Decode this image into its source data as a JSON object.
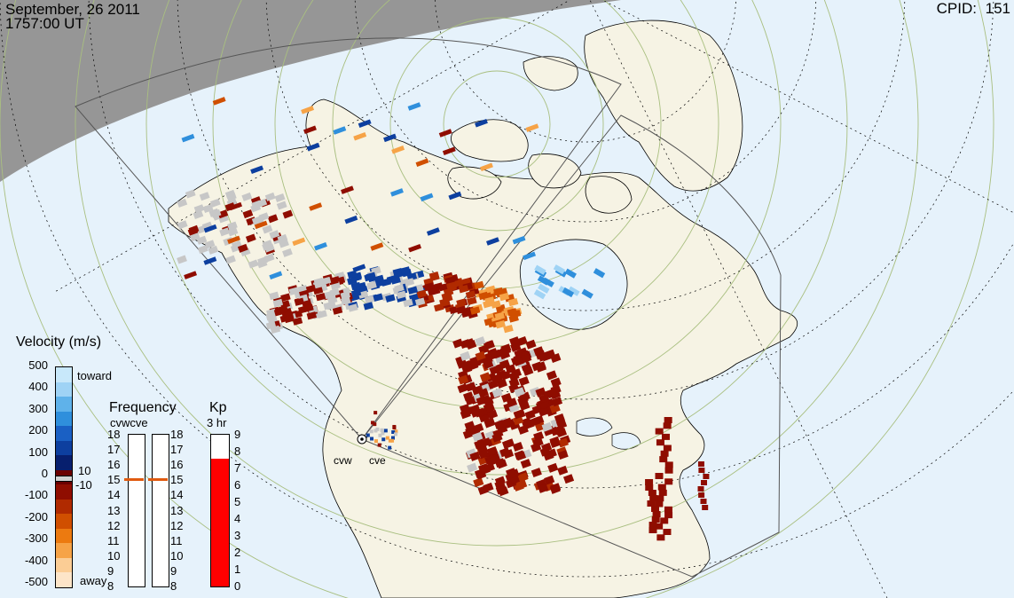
{
  "header": {
    "date": "September, 26 2011",
    "time": "1757:00 UT",
    "cpid_label": "CPID:",
    "cpid_value": "151"
  },
  "stations": [
    {
      "code": "cvw"
    },
    {
      "code": "cve"
    }
  ],
  "velocity_scale": {
    "title": "Velocity (m/s)",
    "ticks": [
      "500",
      "400",
      "300",
      "200",
      "100",
      "0",
      "-100",
      "-200",
      "-300",
      "-400",
      "-500"
    ],
    "toward_label": "toward",
    "away_label": "away",
    "plus_threshold": "10",
    "minus_threshold": "-10",
    "colors": [
      "#c8e8fa",
      "#9fd3f5",
      "#5fb2ea",
      "#2f8fdc",
      "#1a60c4",
      "#0d3f9f",
      "#071f6e",
      "#6b0000",
      "#8f0d00",
      "#b02a00",
      "#d04f00",
      "#ec7a10",
      "#f6a347",
      "#fbcd95",
      "#fde5c8"
    ]
  },
  "frequency_panel": {
    "title": "Frequency",
    "subtitle": "cvwcve",
    "ticks": [
      "18",
      "17",
      "16",
      "15",
      "14",
      "13",
      "12",
      "11",
      "10",
      "9",
      "8"
    ],
    "cvw_value": 15,
    "cve_value": 15,
    "marker_color": "#e05a10"
  },
  "kp_panel": {
    "title": "Kp",
    "subtitle": "3 hr",
    "ticks": [
      "9",
      "8",
      "7",
      "6",
      "5",
      "4",
      "3",
      "2",
      "1",
      "0"
    ],
    "kp_value": 7.6,
    "fill_color": "#ff0000"
  },
  "colors": {
    "ocean": "#e6f2fb",
    "land": "#f6f3e4",
    "night": "#969696",
    "grid": "#9ab06e",
    "coast": "#000000"
  }
}
